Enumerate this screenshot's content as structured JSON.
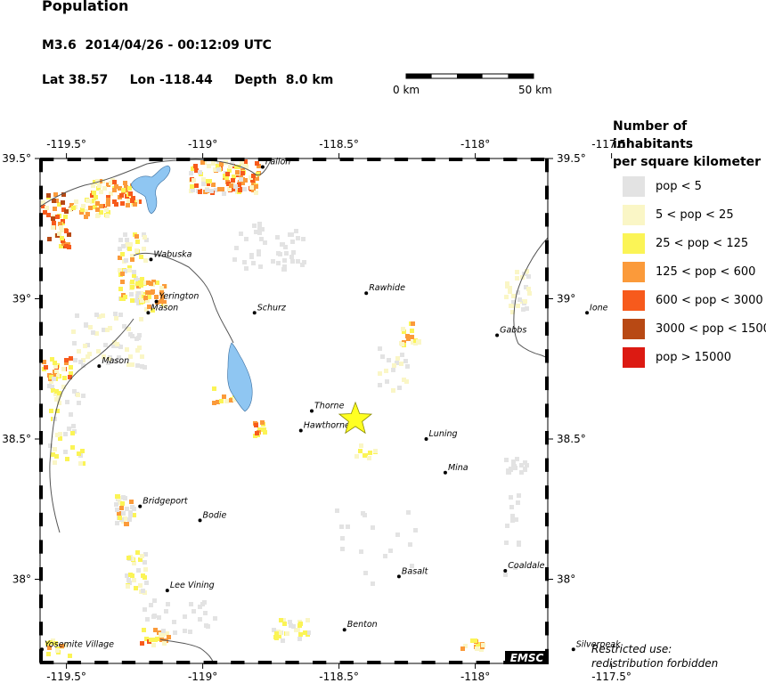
{
  "header": {
    "title": "Population",
    "event": "M3.6  2014/04/26 - 00:12:09 UTC",
    "coords": "Lat 38.57     Lon -118.44     Depth  8.0 km"
  },
  "scale_bar": {
    "start_label": "0 km",
    "end_label": "50 km"
  },
  "axes": {
    "lon_ticks": [
      "-119.5°",
      "-119°",
      "-118.5°",
      "-118°",
      "-117.5°"
    ],
    "lat_ticks": [
      "39.5°",
      "39°",
      "38.5°",
      "38°"
    ]
  },
  "legend": {
    "title_line1": "Number of inhabitants",
    "title_line2": "per square kilometer",
    "items": [
      {
        "label": "pop < 5",
        "color": "#e3e3e3"
      },
      {
        "label": "5 < pop < 25",
        "color": "#faf6c6"
      },
      {
        "label": "25 < pop < 125",
        "color": "#fbf456"
      },
      {
        "label": "125 < pop < 600",
        "color": "#fb9a3a"
      },
      {
        "label": "600 < pop < 3000",
        "color": "#f75a1c"
      },
      {
        "label": "3000 < pop < 15000",
        "color": "#b84914"
      },
      {
        "label": "pop > 15000",
        "color": "#dc1a12"
      }
    ]
  },
  "towns": [
    {
      "name": "Fallon",
      "lon": -118.78,
      "lat": 39.47
    },
    {
      "name": "Wabuska",
      "lon": -119.19,
      "lat": 39.14
    },
    {
      "name": "Yerington",
      "lon": -119.17,
      "lat": 38.99
    },
    {
      "name": "Mason",
      "lon": -119.2,
      "lat": 38.95
    },
    {
      "name": "Schurz",
      "lon": -118.81,
      "lat": 38.95
    },
    {
      "name": "Rawhide",
      "lon": -118.4,
      "lat": 39.02
    },
    {
      "name": "Ione",
      "lon": -117.59,
      "lat": 38.95
    },
    {
      "name": "Gabbs",
      "lon": -117.92,
      "lat": 38.87
    },
    {
      "name": "Mason",
      "lon": -119.38,
      "lat": 38.76
    },
    {
      "name": "Thorne",
      "lon": -118.6,
      "lat": 38.6
    },
    {
      "name": "Hawthorne",
      "lon": -118.64,
      "lat": 38.53
    },
    {
      "name": "Luning",
      "lon": -118.18,
      "lat": 38.5
    },
    {
      "name": "Mina",
      "lon": -118.11,
      "lat": 38.38
    },
    {
      "name": "Bridgeport",
      "lon": -119.23,
      "lat": 38.26
    },
    {
      "name": "Bodie",
      "lon": -119.01,
      "lat": 38.21
    },
    {
      "name": "Basalt",
      "lon": -118.28,
      "lat": 38.01
    },
    {
      "name": "Coaldale",
      "lon": -117.89,
      "lat": 38.03
    },
    {
      "name": "Lee Vining",
      "lon": -119.13,
      "lat": 37.96
    },
    {
      "name": "Benton",
      "lon": -118.48,
      "lat": 37.82
    },
    {
      "name": "Silverpeak",
      "lon": -117.64,
      "lat": 37.75
    },
    {
      "name": "Yosemite Village",
      "lon": -119.59,
      "lat": 37.75
    }
  ],
  "epicenter": {
    "lat": 38.57,
    "lon": -118.44,
    "color": "#ffff22"
  },
  "water_color": "#8fc6f2",
  "logo": "EMSC",
  "restricted_line1": "Restricted use:",
  "restricted_line2": "redistribution forbidden"
}
